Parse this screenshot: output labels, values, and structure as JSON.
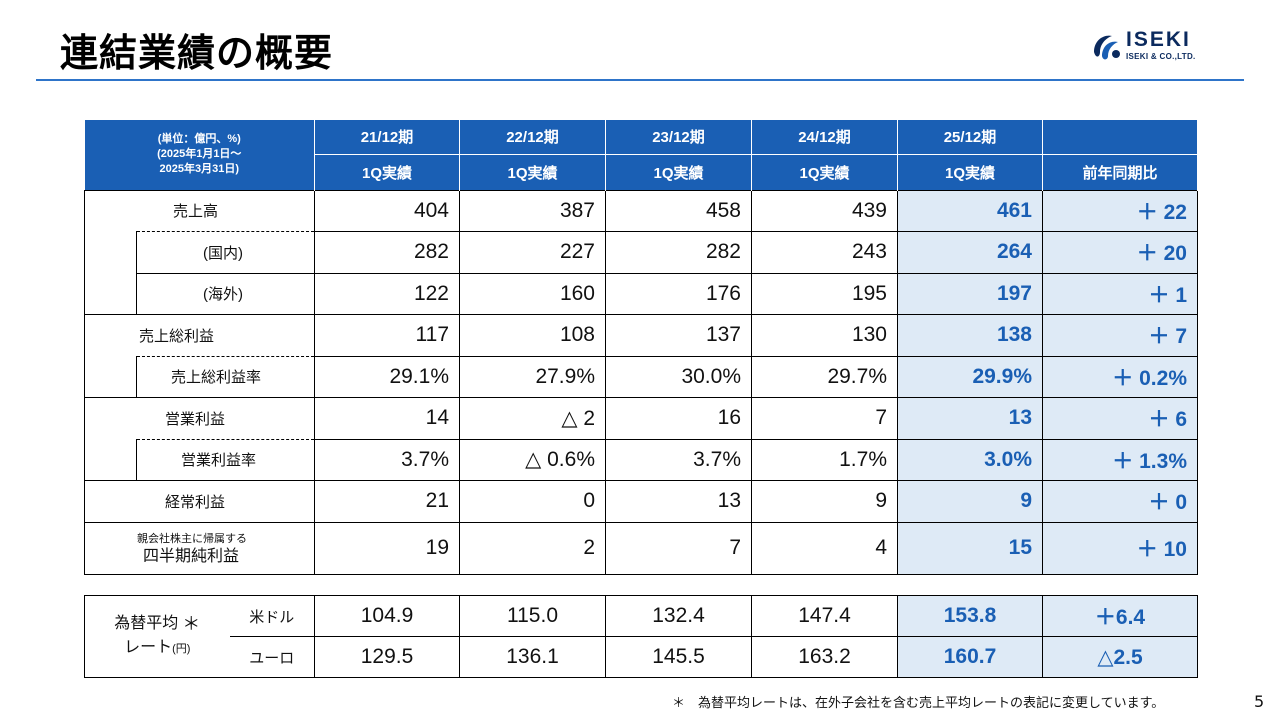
{
  "title": "連結業績の概要",
  "logo": {
    "brand": "ISEKI",
    "corp": "ISEKI & CO.,LTD."
  },
  "table": {
    "corner": [
      "(単位：億円、%)",
      "(2025年1月1日～",
      "2025年3月31日)"
    ],
    "periods": [
      "21/12期",
      "22/12期",
      "23/12期",
      "24/12期",
      "25/12期"
    ],
    "results_label": "1Q実績",
    "yoy_label": "前年同期比",
    "rows": [
      {
        "label": "売上高",
        "values": [
          "404",
          "387",
          "458",
          "439",
          "461"
        ],
        "yoy": "＋ 22"
      },
      {
        "label": "(国内)",
        "values": [
          "282",
          "227",
          "282",
          "243",
          "264"
        ],
        "yoy": "＋ 20"
      },
      {
        "label": "(海外)",
        "values": [
          "122",
          "160",
          "176",
          "195",
          "197"
        ],
        "yoy": "＋ 1"
      },
      {
        "label": "売上総利益",
        "values": [
          "117",
          "108",
          "137",
          "130",
          "138"
        ],
        "yoy": "＋ 7"
      },
      {
        "label": "売上総利益率",
        "values": [
          "29.1%",
          "27.9%",
          "30.0%",
          "29.7%",
          "29.9%"
        ],
        "yoy": "＋ 0.2%"
      },
      {
        "label": "営業利益",
        "values": [
          "14",
          "△ 2",
          "16",
          "7",
          "13"
        ],
        "yoy": "＋ 6"
      },
      {
        "label": "営業利益率",
        "values": [
          "3.7%",
          "△ 0.6%",
          "3.7%",
          "1.7%",
          "3.0%"
        ],
        "yoy": "＋ 1.3%"
      },
      {
        "label": "経常利益",
        "values": [
          "21",
          "0",
          "13",
          "9",
          "9"
        ],
        "yoy": "＋ 0"
      },
      {
        "label_small": "親会社株主に帰属する",
        "label": "四半期純利益",
        "values": [
          "19",
          "2",
          "7",
          "4",
          "15"
        ],
        "yoy": "＋ 10"
      }
    ]
  },
  "fx": {
    "label_line1": "為替平均",
    "asterisk": "＊",
    "label_line2": "レート",
    "label_unit": "(円)",
    "rows": [
      {
        "currency": "米ドル",
        "values": [
          "104.9",
          "115.0",
          "132.4",
          "147.4",
          "153.8"
        ],
        "yoy": "＋6.4"
      },
      {
        "currency": "ユーロ",
        "values": [
          "129.5",
          "136.1",
          "145.5",
          "163.2",
          "160.7"
        ],
        "yoy": "△2.5"
      }
    ]
  },
  "footnote": "＊　為替平均レートは、在外子会社を含む売上平均レートの表記に変更しています。",
  "page_number": "5",
  "colors": {
    "header_blue": "#1a5fb4",
    "highlight_fill": "#deeaf6",
    "rule_blue": "#2e74c9"
  }
}
